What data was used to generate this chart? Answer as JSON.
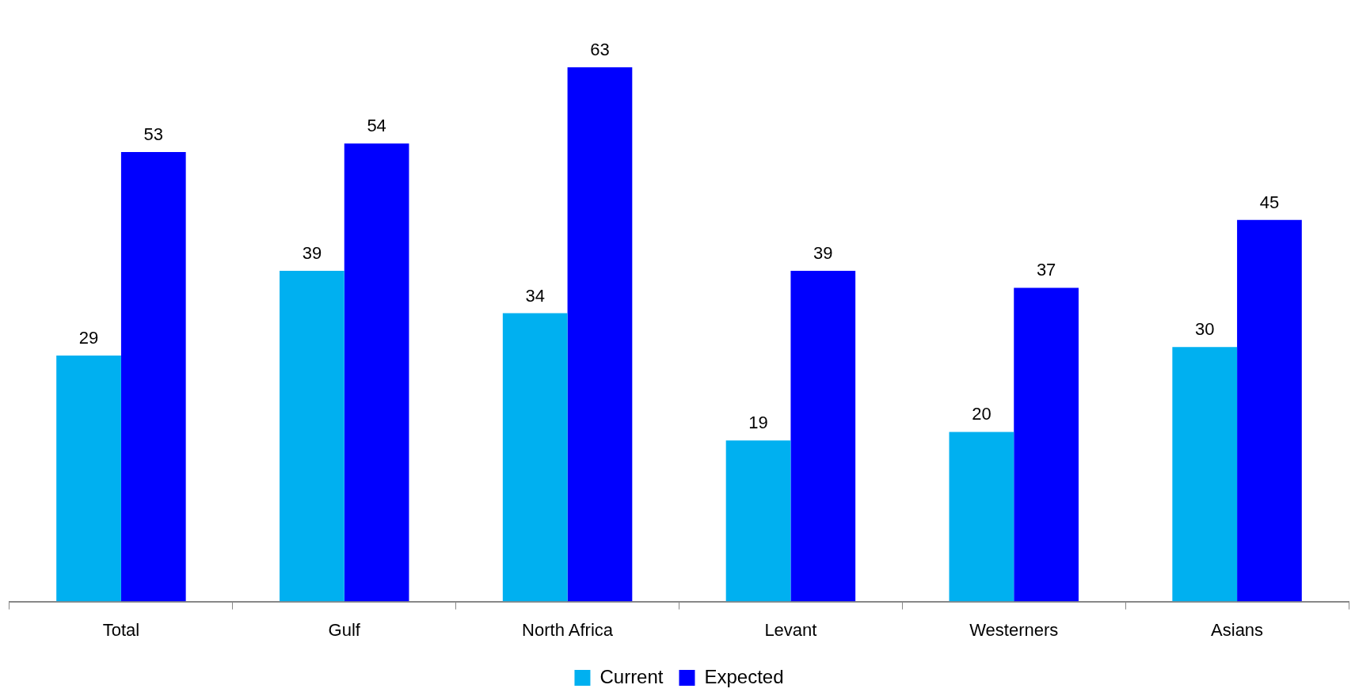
{
  "chart_data": {
    "type": "bar",
    "categories": [
      "Total",
      "Gulf",
      "North Africa",
      "Levant",
      "Westerners",
      "Asians"
    ],
    "series": [
      {
        "name": "Current",
        "color": "#00b0f0",
        "values": [
          29,
          39,
          34,
          19,
          20,
          30
        ]
      },
      {
        "name": "Expected",
        "color": "#0000ff",
        "values": [
          53,
          54,
          63,
          39,
          37,
          45
        ]
      }
    ],
    "tick_labels": "x",
    "data_labels": true,
    "legend": "bottom",
    "grid": false
  }
}
